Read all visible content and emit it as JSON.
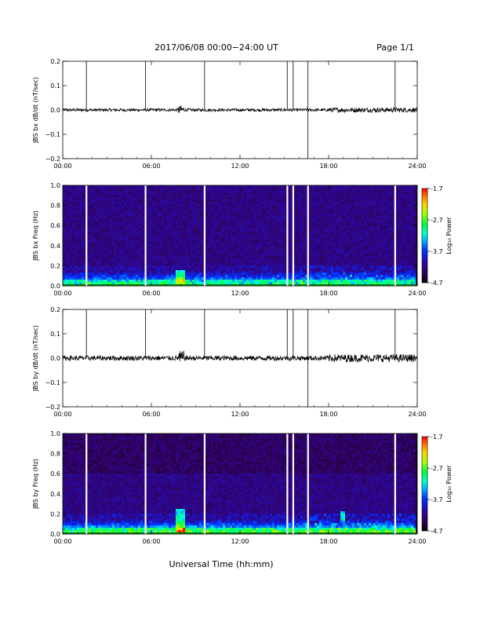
{
  "header": {
    "title": "2017/06/08  00:00−24:00 UT",
    "page": "Page 1/1"
  },
  "chart_data": [
    {
      "type": "line",
      "ylabel": "JBS bx dB/dt (nT/sec)",
      "ylim": [
        -0.2,
        0.2
      ],
      "yticks": [
        "0.2",
        "0.1",
        "0.0",
        "−0.1",
        "−0.2"
      ],
      "xticks": [
        "00:00",
        "06:00",
        "12:00",
        "18:00",
        "24:00"
      ],
      "xlim_hours": [
        0,
        24
      ],
      "spike_hours_up": [
        1.6,
        5.6,
        9.6,
        15.2,
        15.6,
        16.6,
        22.5
      ],
      "spike_hours_down": [
        16.6
      ],
      "baseline": 0.0,
      "noise_amplitude": 0.006
    },
    {
      "type": "heatmap",
      "ylabel": "JBS bx Freq (Hz)",
      "ylim": [
        0.0,
        1.0
      ],
      "yticks": [
        "1.0",
        "0.8",
        "0.6",
        "0.4",
        "0.2",
        "0.0"
      ],
      "xticks": [
        "00:00",
        "06:00",
        "12:00",
        "18:00",
        "24:00"
      ],
      "gap_hours": [
        1.6,
        5.6,
        9.6,
        15.2,
        15.6,
        16.6,
        22.5
      ],
      "colorbar": {
        "label": "Log₁₀ Power",
        "min": -4.7,
        "max": -1.7,
        "ticks": [
          "-1.7",
          "-2.7",
          "-3.7",
          "-4.7"
        ]
      }
    },
    {
      "type": "line",
      "ylabel": "JBS by dB/dt (nT/sec)",
      "ylim": [
        -0.2,
        0.2
      ],
      "yticks": [
        "0.2",
        "0.1",
        "0.0",
        "−0.1",
        "−0.2"
      ],
      "xticks": [
        "00:00",
        "06:00",
        "12:00",
        "18:00",
        "24:00"
      ],
      "xlim_hours": [
        0,
        24
      ],
      "spike_hours_up": [
        1.6,
        5.6,
        9.6,
        15.2,
        15.6,
        16.6,
        22.5
      ],
      "spike_hours_down": [
        16.6
      ],
      "baseline": 0.0,
      "noise_amplitude": 0.01
    },
    {
      "type": "heatmap",
      "ylabel": "JBS by Freq (Hz)",
      "ylim": [
        0.0,
        1.0
      ],
      "yticks": [
        "1.0",
        "0.8",
        "0.6",
        "0.4",
        "0.2",
        "0.0"
      ],
      "xticks": [
        "00:00",
        "06:00",
        "12:00",
        "18:00",
        "24:00"
      ],
      "gap_hours": [
        1.6,
        5.6,
        9.6,
        15.2,
        15.6,
        16.6,
        22.5
      ],
      "colorbar": {
        "label": "Log₁₀ Power",
        "min": -4.7,
        "max": -1.7,
        "ticks": [
          "-1.7",
          "-2.7",
          "-3.7",
          "-4.7"
        ]
      }
    }
  ],
  "xlabel": "Universal Time (hh:mm)"
}
